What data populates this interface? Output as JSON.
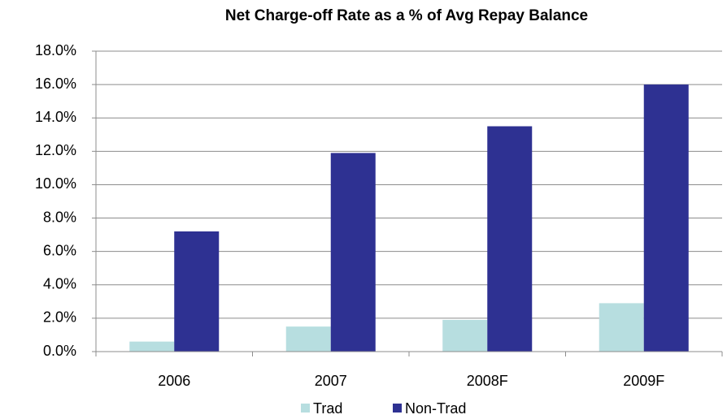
{
  "chart_data": {
    "type": "bar",
    "title": "Net Charge-off Rate as a % of Avg Repay Balance",
    "categories": [
      "2006",
      "2007",
      "2008F",
      "2009F"
    ],
    "series": [
      {
        "name": "Trad",
        "color": "#b7dee0",
        "values": [
          0.6,
          1.5,
          1.9,
          2.9
        ]
      },
      {
        "name": "Non-Trad",
        "color": "#2e3192",
        "values": [
          7.2,
          11.9,
          13.5,
          16.0
        ]
      }
    ],
    "ylim": [
      0,
      18
    ],
    "yticks": [
      {
        "value": 0,
        "label": "0.0%"
      },
      {
        "value": 2,
        "label": "2.0%"
      },
      {
        "value": 4,
        "label": "4.0%"
      },
      {
        "value": 6,
        "label": "6.0%"
      },
      {
        "value": 8,
        "label": "8.0%"
      },
      {
        "value": 10,
        "label": "10.0%"
      },
      {
        "value": 12,
        "label": "12.0%"
      },
      {
        "value": 14,
        "label": "14.0%"
      },
      {
        "value": 16,
        "label": "16.0%"
      },
      {
        "value": 18,
        "label": "18.0%"
      }
    ],
    "grid": true,
    "legend": "bottom"
  }
}
